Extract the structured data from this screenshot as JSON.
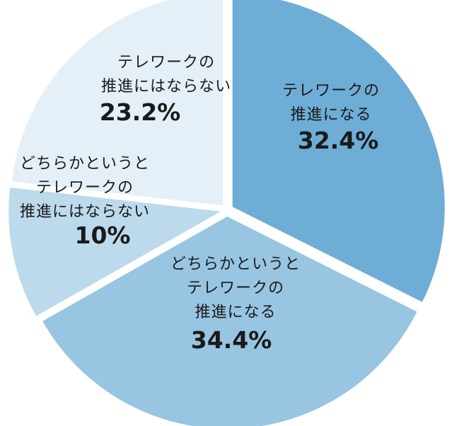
{
  "chart_data": {
    "type": "pie",
    "slices": [
      {
        "label_lines": [
          "テレワークの",
          "推進になる"
        ],
        "percent_text": "32.4%",
        "value": 32.4,
        "color": "#6eadd6"
      },
      {
        "label_lines": [
          "どちらかというと",
          "テレワークの",
          "推進になる"
        ],
        "percent_text": "34.4%",
        "value": 34.4,
        "color": "#98c5e1"
      },
      {
        "label_lines": [
          "どちらかというと",
          "テレワークの",
          "推進にはならない"
        ],
        "percent_text": "10%",
        "value": 10,
        "color": "#bcdaec"
      },
      {
        "label_lines": [
          "テレワークの",
          "推進にはならない"
        ],
        "percent_text": "23.2%",
        "value": 23.2,
        "color": "#e4eff7"
      }
    ],
    "start_angle": "12 o'clock",
    "direction": "clockwise"
  }
}
